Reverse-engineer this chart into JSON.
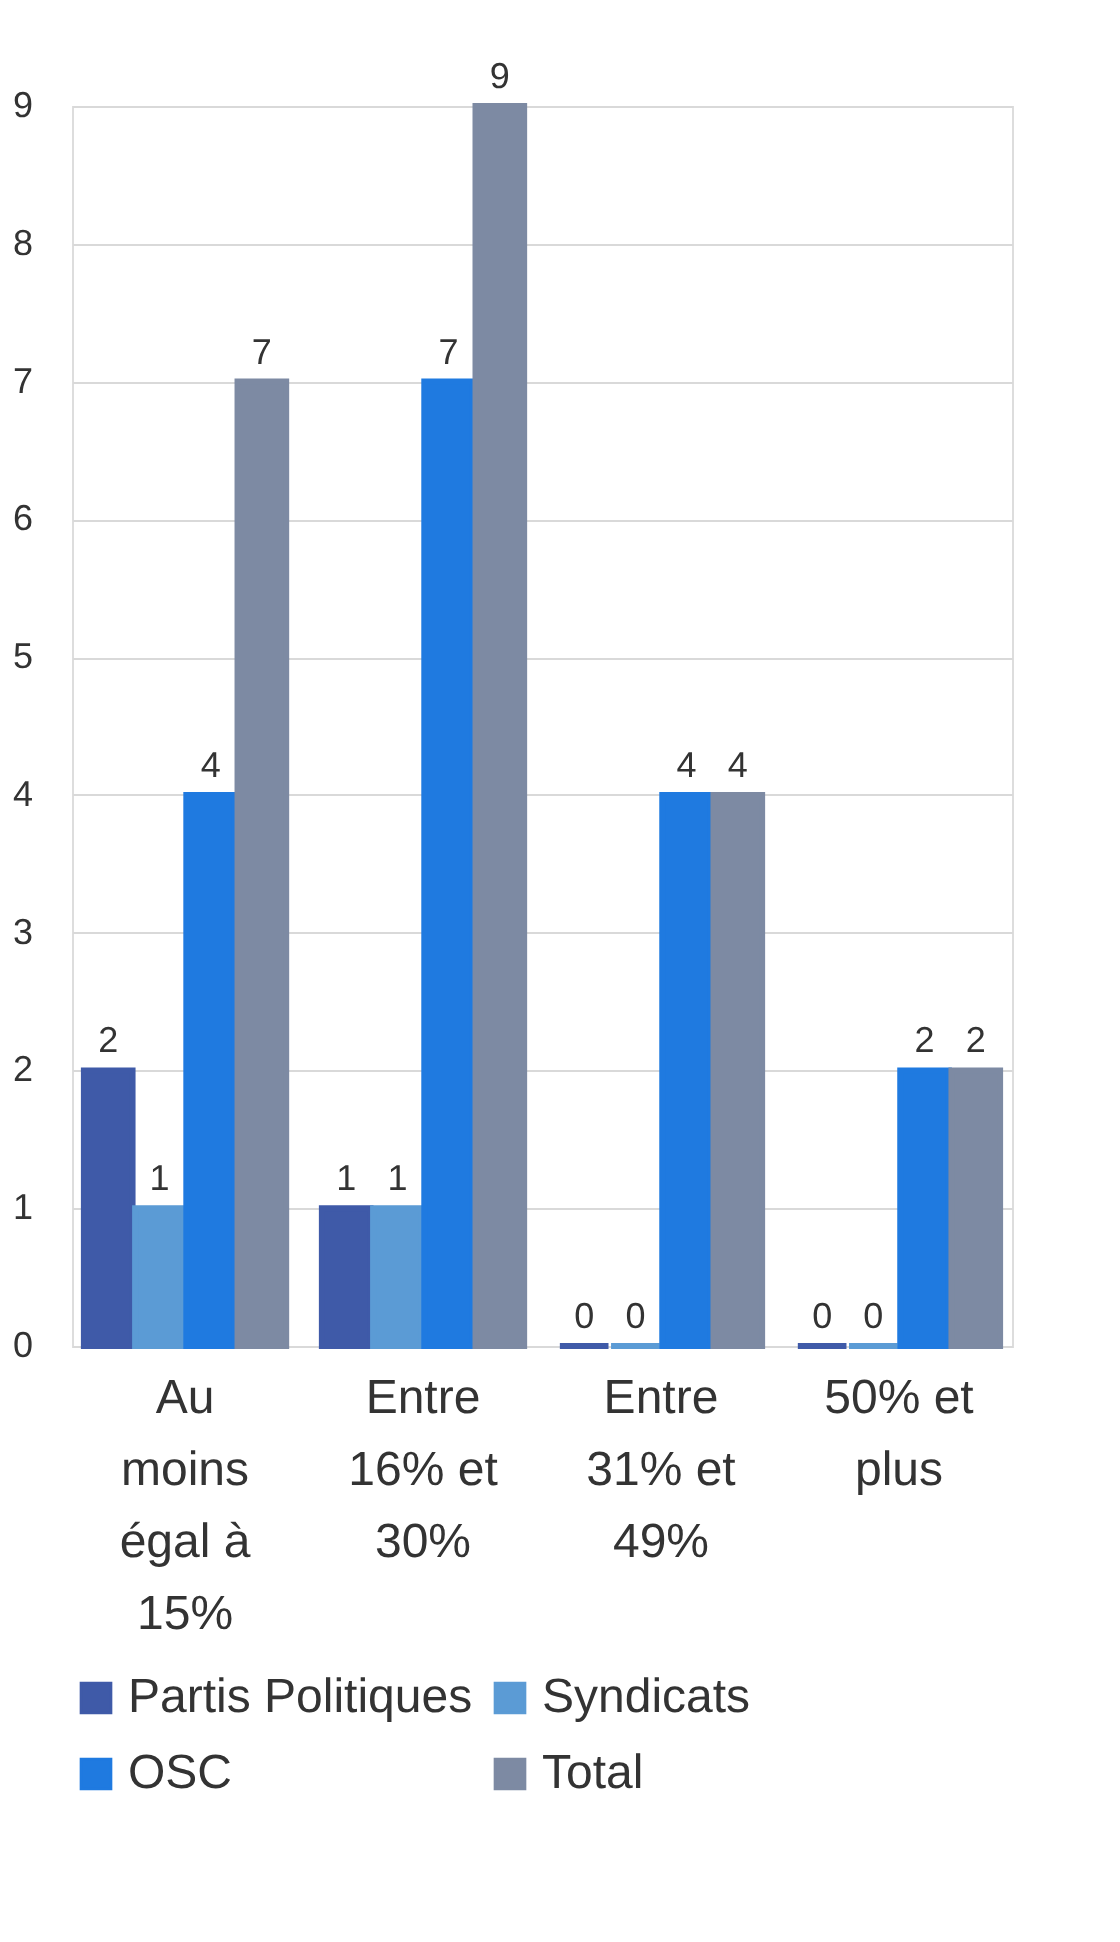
{
  "chart_data": {
    "type": "bar",
    "categories": [
      "Au moins égal à 15%",
      "Entre 16% et 30%",
      "Entre 31% et 49%",
      "50% et plus"
    ],
    "series": [
      {
        "name": "Partis Politiques",
        "color": "#3f5aa8",
        "values": [
          2,
          1,
          0,
          0
        ]
      },
      {
        "name": "Syndicats",
        "color": "#5b9bd5",
        "values": [
          1,
          1,
          0,
          0
        ]
      },
      {
        "name": "OSC",
        "color": "#1f7ae0",
        "values": [
          4,
          7,
          4,
          2
        ]
      },
      {
        "name": "Total",
        "color": "#7d8aa3",
        "values": [
          7,
          9,
          4,
          2
        ]
      }
    ],
    "ylim": [
      0,
      9
    ],
    "yticks": [
      0,
      1,
      2,
      3,
      4,
      5,
      6,
      7,
      8,
      9
    ],
    "grid": "y",
    "legend": "bottom",
    "data_labels": true
  }
}
